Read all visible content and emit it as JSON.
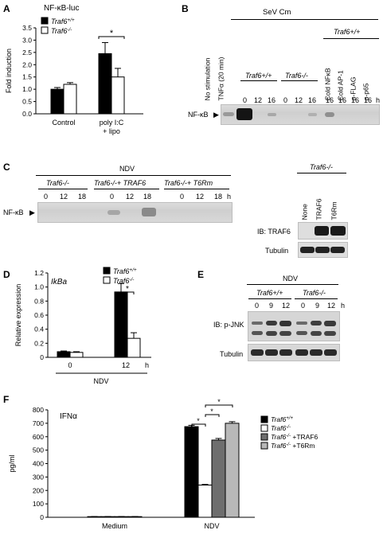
{
  "panels": {
    "A": {
      "label": "A",
      "title": "NF-κB-luc",
      "legend": [
        "Traf6+/+",
        "Traf6-/-"
      ],
      "significance": "*",
      "ylabel": "Fold induction",
      "yticks": [
        "0.0",
        "0.5",
        "1.0",
        "1.5",
        "2.0",
        "2.5",
        "3.0",
        "3.5"
      ],
      "xcat1": "Control",
      "xcat2_line1": "poly I:C",
      "xcat2_line2": "+ lipo"
    },
    "B": {
      "label": "B",
      "header": "SeV Cm",
      "traf_header": "Traf6+/+",
      "lane_no_stim": "No stimulation",
      "lane_tnf": "TNFα (20 min)",
      "group1": "Traf6+/+",
      "group2": "Traf6-/-",
      "lane_cold_nfkb": "Cold NFκB",
      "lane_cold_ap1": "Cold AP-1",
      "lane_flag": "α-FLAG",
      "lane_p65": "α-p65",
      "times": [
        "0",
        "12",
        "16",
        "0",
        "12",
        "16",
        "16",
        "16",
        "16",
        "16",
        "h"
      ],
      "nfkb": "NF-κB"
    },
    "C": {
      "label": "C",
      "header": "NDV",
      "group1": "Traf6-/-",
      "group2": "Traf6-/-+ TRAF6",
      "group3": "Traf6-/-+ T6Rm",
      "times": [
        "0",
        "12",
        "18",
        "0",
        "12",
        "18",
        "0",
        "12",
        "18",
        "h"
      ],
      "nfkb": "NF-κB",
      "ib_header": "Traf6-/-",
      "ib_lanes": [
        "None",
        "TRAF6",
        "T6Rm"
      ],
      "ib_label": "IB: TRAF6",
      "tubulin": "Tubulin"
    },
    "D": {
      "label": "D",
      "gene": "IkBa",
      "legend": [
        "Traf6+/+",
        "Traf6-/-"
      ],
      "significance": "*",
      "ylabel_line1": "Relative expression",
      "yticks": [
        "0",
        "0.2",
        "0.4",
        "0.6",
        "0.8",
        "1.0",
        "1.2"
      ],
      "xticks": [
        "0",
        "12",
        "h"
      ],
      "xlabel": "NDV"
    },
    "E": {
      "label": "E",
      "header": "NDV",
      "group1": "Traf6+/+",
      "group2": "Traf6-/-",
      "times": [
        "0",
        "9",
        "12",
        "0",
        "9",
        "12",
        "h"
      ],
      "ib_label": "IB: p-JNK",
      "tubulin": "Tubulin"
    },
    "F": {
      "label": "F",
      "title": "IFNα",
      "ylabel": "pg/ml",
      "yticks": [
        "0",
        "100",
        "200",
        "300",
        "400",
        "500",
        "600",
        "700",
        "800"
      ],
      "legend": [
        "Traf6+/+",
        "Traf6-/-",
        "Traf6-/- +TRAF6",
        "Traf6-/- +T6Rm"
      ],
      "xcats": [
        "Medium",
        "NDV"
      ],
      "significance": [
        "*",
        "*",
        "*"
      ]
    }
  },
  "chart_data": [
    {
      "type": "bar",
      "panel": "A",
      "title": "NF-κB-luc",
      "ylabel": "Fold induction",
      "ylim": [
        0,
        3.5
      ],
      "categories": [
        "Control",
        "poly I:C + lipo"
      ],
      "series": [
        {
          "name": "Traf6+/+",
          "values": [
            1.0,
            2.45
          ],
          "errors": [
            0.07,
            0.45
          ]
        },
        {
          "name": "Traf6-/-",
          "values": [
            1.2,
            1.5
          ],
          "errors": [
            0.07,
            0.35
          ]
        }
      ]
    },
    {
      "type": "bar",
      "panel": "D",
      "title": "IkBa",
      "ylabel": "Relative expression",
      "xlabel": "NDV",
      "ylim": [
        0,
        1.2
      ],
      "categories": [
        "0",
        "12"
      ],
      "series": [
        {
          "name": "Traf6+/+",
          "values": [
            0.08,
            0.93
          ],
          "errors": [
            0.01,
            0.12
          ]
        },
        {
          "name": "Traf6-/-",
          "values": [
            0.07,
            0.27
          ],
          "errors": [
            0.01,
            0.08
          ]
        }
      ]
    },
    {
      "type": "bar",
      "panel": "F",
      "title": "IFNα",
      "ylabel": "pg/ml",
      "ylim": [
        0,
        800
      ],
      "categories": [
        "Medium",
        "NDV"
      ],
      "series": [
        {
          "name": "Traf6+/+",
          "values": [
            5,
            675
          ],
          "errors": [
            1,
            10
          ]
        },
        {
          "name": "Traf6-/-",
          "values": [
            5,
            240
          ],
          "errors": [
            1,
            5
          ]
        },
        {
          "name": "Traf6-/- +TRAF6",
          "values": [
            5,
            575
          ],
          "errors": [
            1,
            12
          ]
        },
        {
          "name": "Traf6-/- +T6Rm",
          "values": [
            5,
            700
          ],
          "errors": [
            1,
            12
          ]
        }
      ],
      "colors": [
        "#000000",
        "#ffffff",
        "#6e6e6e",
        "#b8b8b8"
      ]
    }
  ]
}
